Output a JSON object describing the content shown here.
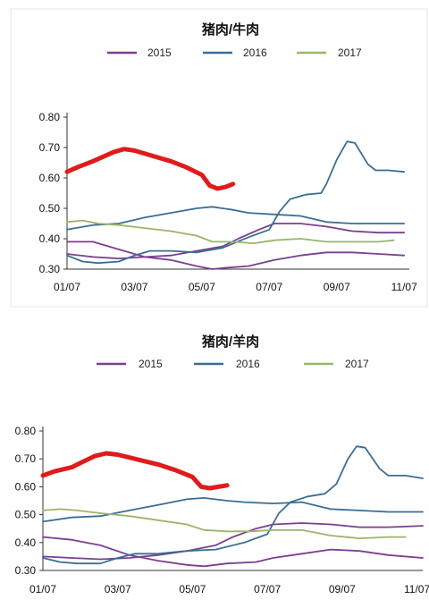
{
  "chart_data": [
    {
      "type": "line",
      "title": "猪肉/牛肉",
      "ylim": [
        0.3,
        0.8
      ],
      "yticks": [
        "0.80",
        "0.70",
        "0.60",
        "0.50",
        "0.40",
        "0.30"
      ],
      "xticks": [
        "01/07",
        "03/07",
        "05/07",
        "07/07",
        "09/07",
        "11/07"
      ],
      "legend": [
        "2015",
        "2016",
        "2017"
      ],
      "colors": {
        "2015": "#7b3f8e",
        "2016": "#3a6e94",
        "2017": "#9bb56a",
        "highlight": "#e01b1b"
      },
      "series": [
        {
          "name": "2015",
          "color": "#7b3f8e",
          "points": [
            [
              0.0,
              0.39
            ],
            [
              0.5,
              0.39
            ],
            [
              0.9,
              0.37
            ],
            [
              1.5,
              0.34
            ],
            [
              2.0,
              0.33
            ],
            [
              2.5,
              0.31
            ],
            [
              2.8,
              0.3
            ],
            [
              3.1,
              0.305
            ],
            [
              3.5,
              0.31
            ],
            [
              4.0,
              0.33
            ],
            [
              4.5,
              0.345
            ],
            [
              5.0,
              0.355
            ],
            [
              5.5,
              0.355
            ],
            [
              6.0,
              0.35
            ],
            [
              6.5,
              0.345
            ]
          ]
        },
        {
          "name": "2015",
          "color": "#7b3f8e",
          "points": [
            [
              0.0,
              0.35
            ],
            [
              0.5,
              0.34
            ],
            [
              1.0,
              0.335
            ],
            [
              1.5,
              0.34
            ],
            [
              2.0,
              0.345
            ],
            [
              2.5,
              0.36
            ],
            [
              3.0,
              0.375
            ],
            [
              3.3,
              0.4
            ],
            [
              3.7,
              0.43
            ],
            [
              4.0,
              0.45
            ],
            [
              4.5,
              0.45
            ],
            [
              5.0,
              0.44
            ],
            [
              5.5,
              0.425
            ],
            [
              6.0,
              0.42
            ],
            [
              6.5,
              0.42
            ]
          ]
        },
        {
          "name": "2016",
          "color": "#3a6e94",
          "points": [
            [
              0.0,
              0.43
            ],
            [
              0.5,
              0.445
            ],
            [
              1.0,
              0.45
            ],
            [
              1.5,
              0.47
            ],
            [
              2.0,
              0.485
            ],
            [
              2.5,
              0.5
            ],
            [
              2.8,
              0.505
            ],
            [
              3.2,
              0.495
            ],
            [
              3.5,
              0.485
            ],
            [
              4.0,
              0.48
            ],
            [
              4.5,
              0.475
            ],
            [
              5.0,
              0.455
            ],
            [
              5.5,
              0.45
            ],
            [
              6.0,
              0.45
            ],
            [
              6.5,
              0.45
            ]
          ]
        },
        {
          "name": "2016",
          "color": "#3a6e94",
          "points": [
            [
              0.0,
              0.345
            ],
            [
              0.3,
              0.325
            ],
            [
              0.6,
              0.32
            ],
            [
              1.0,
              0.325
            ],
            [
              1.3,
              0.345
            ],
            [
              1.6,
              0.36
            ],
            [
              2.0,
              0.36
            ],
            [
              2.5,
              0.355
            ],
            [
              3.0,
              0.37
            ],
            [
              3.5,
              0.405
            ],
            [
              3.9,
              0.43
            ],
            [
              4.1,
              0.49
            ],
            [
              4.3,
              0.53
            ],
            [
              4.6,
              0.545
            ],
            [
              4.9,
              0.55
            ],
            [
              5.0,
              0.58
            ],
            [
              5.2,
              0.66
            ],
            [
              5.4,
              0.72
            ],
            [
              5.55,
              0.715
            ],
            [
              5.8,
              0.645
            ],
            [
              5.95,
              0.625
            ],
            [
              6.2,
              0.625
            ],
            [
              6.5,
              0.62
            ]
          ]
        },
        {
          "name": "2017",
          "color": "#9bb56a",
          "points": [
            [
              0.0,
              0.455
            ],
            [
              0.3,
              0.46
            ],
            [
              0.6,
              0.45
            ],
            [
              1.0,
              0.445
            ],
            [
              1.5,
              0.435
            ],
            [
              2.0,
              0.425
            ],
            [
              2.5,
              0.41
            ],
            [
              2.8,
              0.39
            ],
            [
              3.2,
              0.39
            ],
            [
              3.6,
              0.385
            ],
            [
              4.0,
              0.395
            ],
            [
              4.5,
              0.4
            ],
            [
              5.0,
              0.39
            ],
            [
              5.5,
              0.39
            ],
            [
              6.0,
              0.39
            ],
            [
              6.3,
              0.395
            ]
          ]
        },
        {
          "name": "2017",
          "color": "#e01b1b",
          "width": 5,
          "points": [
            [
              0.0,
              0.62
            ],
            [
              0.2,
              0.635
            ],
            [
              0.5,
              0.655
            ],
            [
              0.7,
              0.67
            ],
            [
              0.9,
              0.685
            ],
            [
              1.1,
              0.695
            ],
            [
              1.3,
              0.69
            ],
            [
              1.6,
              0.675
            ],
            [
              2.0,
              0.655
            ],
            [
              2.3,
              0.635
            ],
            [
              2.6,
              0.61
            ],
            [
              2.75,
              0.575
            ],
            [
              2.9,
              0.565
            ],
            [
              3.05,
              0.57
            ],
            [
              3.2,
              0.58
            ]
          ]
        }
      ]
    },
    {
      "type": "line",
      "title": "猪肉/羊肉",
      "ylim": [
        0.3,
        0.8
      ],
      "yticks": [
        "0.80",
        "0.70",
        "0.60",
        "0.50",
        "0.40",
        "0.30"
      ],
      "xticks": [
        "01/07",
        "03/07",
        "05/07",
        "07/07",
        "09/07",
        "11/07"
      ],
      "legend": [
        "2015",
        "2016",
        "2017"
      ],
      "colors": {
        "2015": "#7b3f8e",
        "2016": "#3a6e94",
        "2017": "#9bb56a",
        "highlight": "#e01b1b"
      },
      "series": [
        {
          "name": "2015",
          "color": "#7b3f8e",
          "points": [
            [
              0.0,
              0.42
            ],
            [
              0.5,
              0.41
            ],
            [
              1.0,
              0.39
            ],
            [
              1.5,
              0.355
            ],
            [
              2.0,
              0.335
            ],
            [
              2.5,
              0.32
            ],
            [
              2.8,
              0.315
            ],
            [
              3.2,
              0.325
            ],
            [
              3.7,
              0.33
            ],
            [
              4.0,
              0.345
            ],
            [
              4.5,
              0.36
            ],
            [
              5.0,
              0.375
            ],
            [
              5.5,
              0.37
            ],
            [
              6.0,
              0.355
            ],
            [
              6.6,
              0.345
            ]
          ]
        },
        {
          "name": "2015",
          "color": "#7b3f8e",
          "points": [
            [
              0.0,
              0.35
            ],
            [
              0.5,
              0.345
            ],
            [
              1.0,
              0.34
            ],
            [
              1.5,
              0.345
            ],
            [
              2.0,
              0.355
            ],
            [
              2.5,
              0.37
            ],
            [
              3.0,
              0.39
            ],
            [
              3.3,
              0.42
            ],
            [
              3.7,
              0.45
            ],
            [
              4.0,
              0.465
            ],
            [
              4.5,
              0.47
            ],
            [
              5.0,
              0.465
            ],
            [
              5.5,
              0.455
            ],
            [
              6.0,
              0.455
            ],
            [
              6.6,
              0.46
            ]
          ]
        },
        {
          "name": "2016",
          "color": "#3a6e94",
          "points": [
            [
              0.0,
              0.475
            ],
            [
              0.5,
              0.49
            ],
            [
              1.0,
              0.495
            ],
            [
              1.5,
              0.515
            ],
            [
              2.0,
              0.535
            ],
            [
              2.5,
              0.555
            ],
            [
              2.8,
              0.56
            ],
            [
              3.2,
              0.55
            ],
            [
              3.5,
              0.545
            ],
            [
              4.0,
              0.54
            ],
            [
              4.5,
              0.545
            ],
            [
              5.0,
              0.52
            ],
            [
              5.5,
              0.515
            ],
            [
              6.0,
              0.51
            ],
            [
              6.6,
              0.51
            ]
          ]
        },
        {
          "name": "2016",
          "color": "#3a6e94",
          "points": [
            [
              0.0,
              0.345
            ],
            [
              0.3,
              0.33
            ],
            [
              0.6,
              0.325
            ],
            [
              1.0,
              0.325
            ],
            [
              1.3,
              0.345
            ],
            [
              1.6,
              0.36
            ],
            [
              2.0,
              0.36
            ],
            [
              2.5,
              0.37
            ],
            [
              3.0,
              0.375
            ],
            [
              3.5,
              0.4
            ],
            [
              3.9,
              0.43
            ],
            [
              4.1,
              0.505
            ],
            [
              4.3,
              0.545
            ],
            [
              4.6,
              0.565
            ],
            [
              4.9,
              0.575
            ],
            [
              5.1,
              0.61
            ],
            [
              5.3,
              0.7
            ],
            [
              5.45,
              0.745
            ],
            [
              5.6,
              0.74
            ],
            [
              5.85,
              0.665
            ],
            [
              6.0,
              0.64
            ],
            [
              6.3,
              0.64
            ],
            [
              6.6,
              0.63
            ]
          ]
        },
        {
          "name": "2017",
          "color": "#9bb56a",
          "points": [
            [
              0.0,
              0.515
            ],
            [
              0.3,
              0.52
            ],
            [
              0.6,
              0.515
            ],
            [
              1.0,
              0.505
            ],
            [
              1.5,
              0.495
            ],
            [
              2.0,
              0.48
            ],
            [
              2.5,
              0.465
            ],
            [
              2.8,
              0.445
            ],
            [
              3.2,
              0.44
            ],
            [
              3.6,
              0.44
            ],
            [
              4.0,
              0.445
            ],
            [
              4.5,
              0.445
            ],
            [
              5.0,
              0.425
            ],
            [
              5.5,
              0.415
            ],
            [
              6.0,
              0.42
            ],
            [
              6.3,
              0.42
            ]
          ]
        },
        {
          "name": "2017",
          "color": "#e01b1b",
          "width": 5,
          "points": [
            [
              0.0,
              0.64
            ],
            [
              0.2,
              0.655
            ],
            [
              0.5,
              0.67
            ],
            [
              0.7,
              0.69
            ],
            [
              0.9,
              0.71
            ],
            [
              1.1,
              0.72
            ],
            [
              1.3,
              0.715
            ],
            [
              1.6,
              0.7
            ],
            [
              2.0,
              0.68
            ],
            [
              2.3,
              0.66
            ],
            [
              2.6,
              0.635
            ],
            [
              2.75,
              0.6
            ],
            [
              2.9,
              0.595
            ],
            [
              3.05,
              0.6
            ],
            [
              3.2,
              0.605
            ]
          ]
        }
      ]
    }
  ]
}
